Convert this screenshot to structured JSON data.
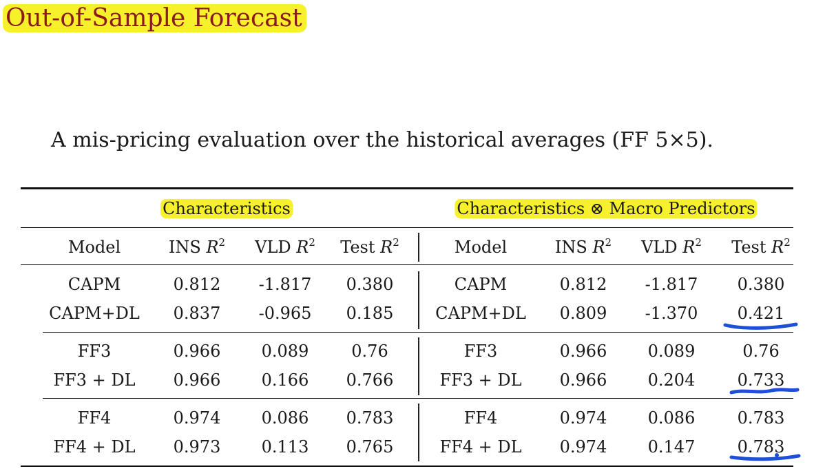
{
  "title": "Out-of-Sample Forecast",
  "caption": "A mis-pricing evaluation over the historical averages (FF 5×5).",
  "groups": {
    "left": "Characteristics",
    "right": "Characteristics ⊗ Macro Predictors"
  },
  "columns": {
    "model": "Model",
    "ins": "INS",
    "vld": "VLD",
    "test": "Test",
    "r": "R",
    "sq": "2"
  },
  "rows": [
    {
      "left": [
        "CAPM",
        "0.812",
        "-1.817",
        "0.380"
      ],
      "right": [
        "CAPM",
        "0.812",
        "-1.817",
        "0.380"
      ]
    },
    {
      "left": [
        "CAPM+DL",
        "0.837",
        "-0.965",
        "0.185"
      ],
      "right": [
        "CAPM+DL",
        "0.809",
        "-1.370",
        "0.421"
      ]
    },
    {
      "left": [
        "FF3",
        "0.966",
        "0.089",
        "0.76"
      ],
      "right": [
        "FF3",
        "0.966",
        "0.089",
        "0.76"
      ]
    },
    {
      "left": [
        "FF3 + DL",
        "0.966",
        "0.166",
        "0.766"
      ],
      "right": [
        "FF3 + DL",
        "0.966",
        "0.204",
        "0.733"
      ]
    },
    {
      "left": [
        "FF4",
        "0.974",
        "0.086",
        "0.783"
      ],
      "right": [
        "FF4",
        "0.974",
        "0.086",
        "0.783"
      ]
    },
    {
      "left": [
        "FF4 + DL",
        "0.973",
        "0.113",
        "0.765"
      ],
      "right": [
        "FF4 + DL",
        "0.974",
        "0.147",
        "0.783"
      ]
    }
  ],
  "annotation_color": "#1e4fd8",
  "highlight_color": "#f6f12a",
  "title_color": "#8b1a1a"
}
